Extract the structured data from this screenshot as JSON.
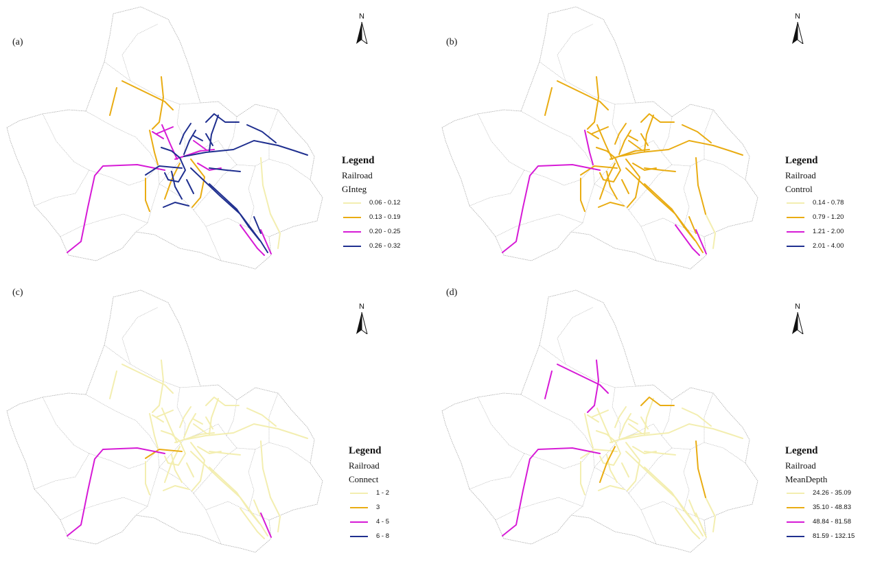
{
  "colors": {
    "class1": "#f3eeb0",
    "class2": "#e9ac12",
    "class3": "#d61ad6",
    "class4": "#1f2f8f",
    "boundary": "#a9a9a9"
  },
  "north_arrow": {
    "label": "N",
    "icon": "north-arrow-icon"
  },
  "panels": [
    {
      "label": "(a)",
      "legend": {
        "title": "Legend",
        "layer": "Railroad",
        "field": "GInteg",
        "classes": [
          "0.06 - 0.12",
          "0.13 - 0.19",
          "0.20 - 0.25",
          "0.26 - 0.32"
        ]
      },
      "route_classes": [
        2,
        2,
        2,
        3,
        2,
        2,
        4,
        4,
        4,
        4,
        4,
        4,
        4,
        3,
        3,
        3,
        3,
        2,
        1,
        1,
        2,
        4,
        4,
        4,
        4,
        4,
        4,
        4,
        3,
        3,
        4,
        3,
        3,
        4,
        4,
        4
      ]
    },
    {
      "label": "(b)",
      "legend": {
        "title": "Legend",
        "layer": "Railroad",
        "field": "Control",
        "classes": [
          "0.14 - 0.78",
          "0.79 - 1.20",
          "1.21 - 2.00",
          "2.01 - 4.00"
        ]
      },
      "route_classes": [
        2,
        2,
        2,
        3,
        3,
        2,
        2,
        2,
        2,
        2,
        2,
        2,
        2,
        2,
        2,
        2,
        2,
        2,
        2,
        1,
        2,
        2,
        2,
        2,
        2,
        2,
        2,
        2,
        3,
        3,
        2,
        2,
        2,
        2,
        2,
        2
      ]
    },
    {
      "label": "(c)",
      "legend": {
        "title": "Legend",
        "layer": "Railroad",
        "field": "Connect",
        "classes": [
          "1 - 2",
          "3",
          "4 - 5",
          "6 - 8"
        ]
      },
      "route_classes": [
        1,
        1,
        1,
        3,
        1,
        1,
        1,
        1,
        1,
        1,
        1,
        1,
        1,
        1,
        1,
        1,
        1,
        1,
        1,
        1,
        1,
        1,
        1,
        1,
        1,
        2,
        1,
        1,
        1,
        3,
        1,
        1,
        1,
        1,
        1,
        1
      ]
    },
    {
      "label": "(d)",
      "legend": {
        "title": "Legend",
        "layer": "Railroad",
        "field": "MeanDepth",
        "classes": [
          "24.26 - 35.09",
          "35.10 - 48.83",
          "48.84 - 81.58",
          "81.59 - 132.15"
        ]
      },
      "route_classes": [
        3,
        3,
        3,
        3,
        1,
        1,
        1,
        1,
        1,
        1,
        1,
        2,
        1,
        1,
        1,
        1,
        1,
        2,
        2,
        1,
        1,
        1,
        1,
        1,
        1,
        1,
        1,
        1,
        1,
        1,
        1,
        1,
        1,
        1,
        1,
        1
      ]
    }
  ]
}
